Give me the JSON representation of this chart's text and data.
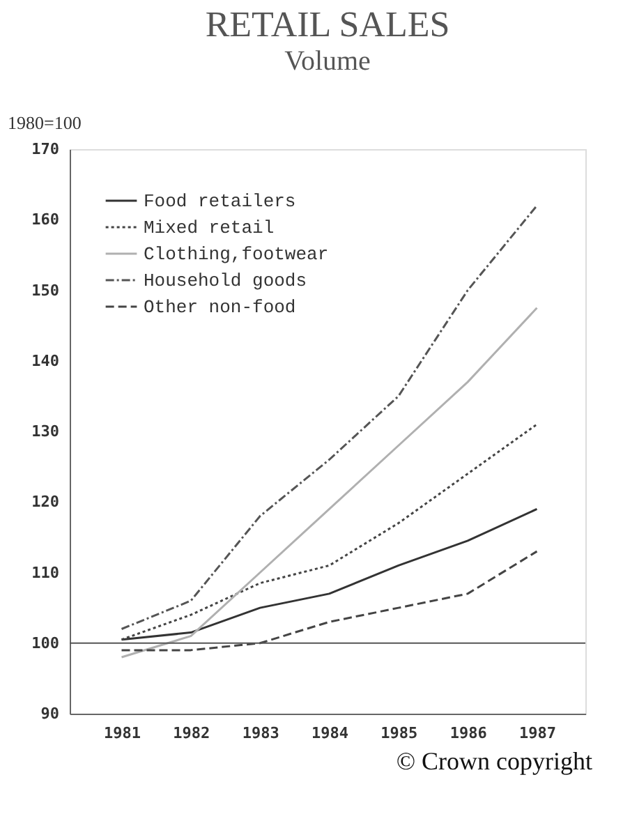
{
  "chart_data": {
    "type": "line",
    "title": "RETAIL SALES",
    "subtitle": "Volume",
    "ylabel": "1980=100",
    "categories": [
      "1981",
      "1982",
      "1983",
      "1984",
      "1985",
      "1986",
      "1987"
    ],
    "series": [
      {
        "name": "Food retailers",
        "color": "#333333",
        "line_style": "solid",
        "values": [
          100.5,
          101.5,
          105,
          107,
          111,
          114.5,
          119
        ]
      },
      {
        "name": "Mixed retail",
        "color": "#444444",
        "line_style": "dotted",
        "values": [
          100.5,
          104,
          108.5,
          111,
          117,
          124,
          131
        ]
      },
      {
        "name": "Clothing,footwear",
        "color": "#b0b0b0",
        "line_style": "solid",
        "values": [
          98,
          101,
          110,
          119,
          128,
          137,
          147.5
        ]
      },
      {
        "name": "Household goods",
        "color": "#555555",
        "line_style": "dashdot",
        "values": [
          102,
          106,
          118,
          126,
          135,
          150,
          162
        ]
      },
      {
        "name": "Other non-food",
        "color": "#444444",
        "line_style": "dashed",
        "values": [
          99,
          99,
          100,
          103,
          105,
          107,
          113
        ]
      }
    ],
    "ylim": [
      90,
      170
    ],
    "yticks": [
      90,
      100,
      110,
      120,
      130,
      140,
      150,
      160,
      170
    ],
    "ref_lines": [
      {
        "axis": "y",
        "value": 100,
        "color": "#555555"
      }
    ],
    "grid": false,
    "legend": "top left",
    "marker": "none",
    "annotations": [
      "© Crown copyright"
    ]
  }
}
